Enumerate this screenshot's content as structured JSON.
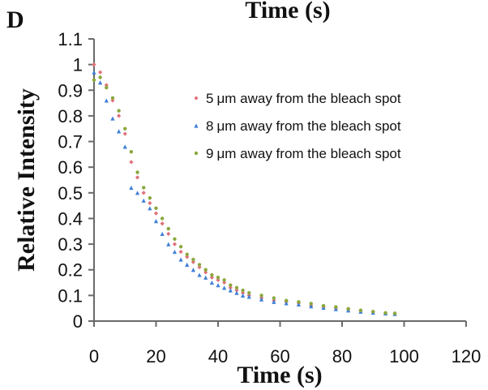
{
  "panel_letter": "D",
  "top_title": "Time (s)",
  "chart_data": {
    "type": "scatter",
    "xlabel": "Time (s)",
    "ylabel": "Relative Intensity",
    "xlim": [
      0,
      120
    ],
    "ylim": [
      0,
      1.1
    ],
    "x_ticks": [
      "0",
      "20",
      "40",
      "60",
      "80",
      "100",
      "120"
    ],
    "y_ticks": [
      "0",
      "0.1",
      "0.2",
      "0.3",
      "0.4",
      "0.5",
      "0.6",
      "0.7",
      "0.8",
      "0.9",
      "1",
      "1.1"
    ],
    "grid": false,
    "legend_position": "top-right",
    "series": [
      {
        "name": "5 μm away from the bleach spot",
        "legend_prefix": "5",
        "legend_suffix": "μm away from the bleach spot",
        "color": "#e0707a",
        "marker": "diamond",
        "x": [
          0,
          2,
          4,
          6,
          8,
          10,
          12,
          14,
          16,
          18,
          20,
          22,
          24,
          26,
          28,
          30,
          32,
          34,
          36,
          38,
          40,
          42,
          44,
          46,
          48,
          50,
          54,
          58,
          62,
          66,
          70,
          74,
          78,
          82,
          86,
          90,
          94,
          97
        ],
        "y": [
          1.0,
          0.97,
          0.92,
          0.86,
          0.8,
          0.73,
          0.62,
          0.56,
          0.5,
          0.46,
          0.42,
          0.38,
          0.34,
          0.3,
          0.27,
          0.25,
          0.23,
          0.21,
          0.19,
          0.17,
          0.16,
          0.15,
          0.13,
          0.12,
          0.11,
          0.1,
          0.09,
          0.08,
          0.075,
          0.07,
          0.06,
          0.055,
          0.05,
          0.045,
          0.04,
          0.035,
          0.03,
          0.03
        ]
      },
      {
        "name": "8 μm away from the bleach spot",
        "legend_prefix": "8",
        "legend_suffix": "μm away from the bleach spot",
        "color": "#3f7fd6",
        "marker": "triangle",
        "x": [
          0,
          2,
          4,
          6,
          8,
          10,
          12,
          14,
          16,
          18,
          20,
          22,
          24,
          26,
          28,
          30,
          32,
          34,
          36,
          38,
          40,
          42,
          44,
          46,
          48,
          50,
          54,
          58,
          62,
          66,
          70,
          74,
          78,
          82,
          86,
          90,
          94,
          97
        ],
        "y": [
          0.97,
          0.93,
          0.86,
          0.79,
          0.74,
          0.68,
          0.52,
          0.5,
          0.47,
          0.44,
          0.39,
          0.34,
          0.3,
          0.27,
          0.24,
          0.22,
          0.2,
          0.18,
          0.17,
          0.15,
          0.14,
          0.13,
          0.12,
          0.11,
          0.1,
          0.095,
          0.085,
          0.075,
          0.07,
          0.065,
          0.058,
          0.052,
          0.047,
          0.042,
          0.037,
          0.033,
          0.03,
          0.028
        ]
      },
      {
        "name": "9 μm away from the bleach spot",
        "legend_prefix": "9",
        "legend_suffix": "μm away from the bleach spot",
        "color": "#8aa83c",
        "marker": "circle",
        "x": [
          0,
          2,
          4,
          6,
          8,
          10,
          12,
          14,
          16,
          18,
          20,
          22,
          24,
          26,
          28,
          30,
          32,
          34,
          36,
          38,
          40,
          42,
          44,
          46,
          48,
          50,
          54,
          58,
          62,
          66,
          70,
          74,
          78,
          82,
          86,
          90,
          94,
          97
        ],
        "y": [
          0.94,
          0.95,
          0.91,
          0.87,
          0.82,
          0.75,
          0.66,
          0.58,
          0.52,
          0.48,
          0.44,
          0.4,
          0.36,
          0.32,
          0.29,
          0.26,
          0.24,
          0.22,
          0.2,
          0.18,
          0.17,
          0.16,
          0.14,
          0.13,
          0.12,
          0.11,
          0.1,
          0.09,
          0.08,
          0.075,
          0.068,
          0.06,
          0.055,
          0.048,
          0.042,
          0.037,
          0.032,
          0.03
        ]
      }
    ]
  }
}
